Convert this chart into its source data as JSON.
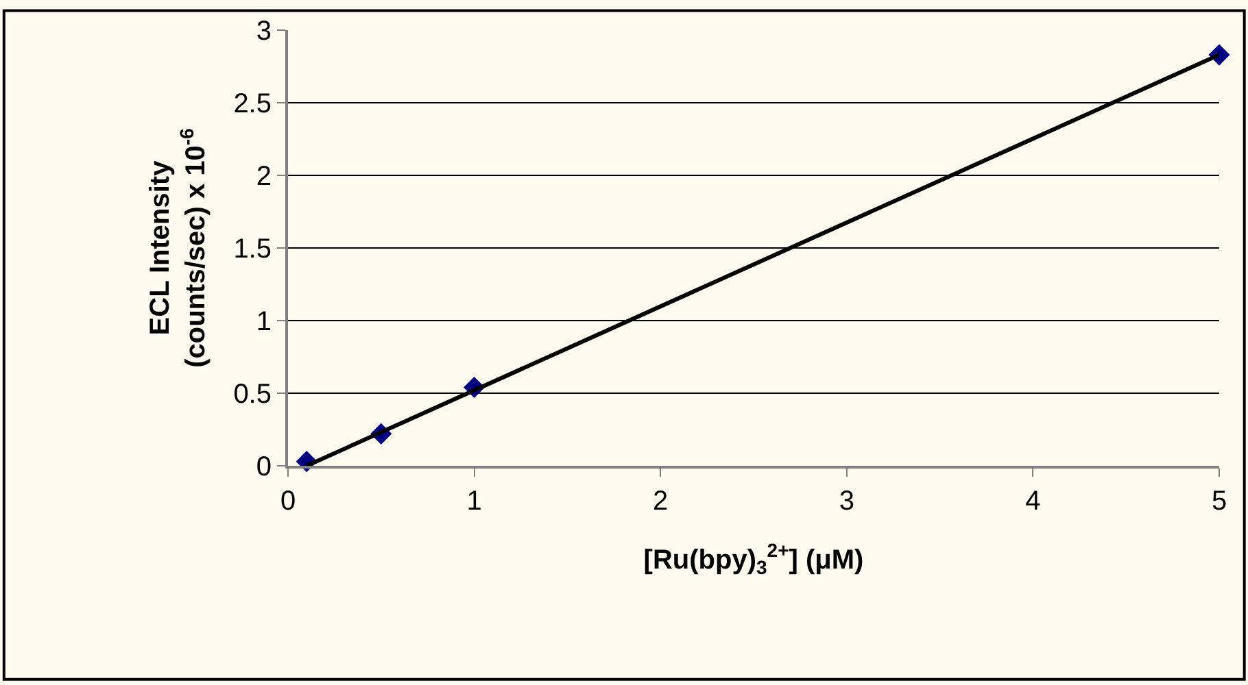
{
  "chart_data": {
    "type": "scatter",
    "xlabel": "[Ru(bpy)$_{3}$$^{2+}$] (μM)",
    "ylabel": "ECL Intensity\n(counts/sec) x 10$^{-6}$",
    "x": [
      0.1,
      0.5,
      1,
      5
    ],
    "series": [
      {
        "color": "#000080",
        "marker": "diamond",
        "values": [
          0.03,
          0.22,
          0.54,
          2.83
        ]
      },
      {
        "type": "line",
        "color": "#000000",
        "x": [
          0.1,
          5
        ],
        "values": [
          0.0,
          2.83
        ],
        "marker": "none",
        "line_style": "solid"
      }
    ],
    "xlim": [
      0,
      5
    ],
    "xticks": [
      0,
      1,
      2,
      3,
      4,
      5
    ],
    "ylim": [
      0,
      3
    ],
    "yticks": [
      0,
      0.5,
      1,
      1.5,
      2,
      2.5,
      3
    ],
    "grid": "y"
  }
}
